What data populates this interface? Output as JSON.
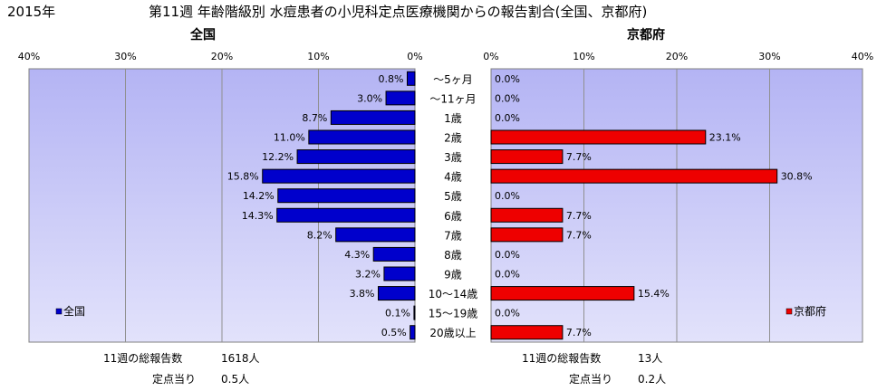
{
  "year": "2015年",
  "title": "第11週 年齢階級別 水痘患者の小児科定点医療機関からの報告割合(全国、京都府)",
  "chart_data": [
    {
      "type": "bar",
      "orientation": "horizontal",
      "title": "全国",
      "legend": "全国",
      "legend_position": "bottom-left",
      "xlim": [
        0,
        40
      ],
      "ticks": [
        "40%",
        "30%",
        "20%",
        "10%",
        "0%"
      ],
      "color": "#0000cc",
      "categories": [
        "～5ヶ月",
        "～11ヶ月",
        "1歳",
        "2歳",
        "3歳",
        "4歳",
        "5歳",
        "6歳",
        "7歳",
        "8歳",
        "9歳",
        "10～14歳",
        "15～19歳",
        "20歳以上"
      ],
      "values": [
        0.8,
        3.0,
        8.7,
        11.0,
        12.2,
        15.8,
        14.2,
        14.3,
        8.2,
        4.3,
        3.2,
        3.8,
        0.1,
        0.5
      ],
      "labels": [
        "0.8%",
        "3.0%",
        "8.7%",
        "11.0%",
        "12.2%",
        "15.8%",
        "14.2%",
        "14.3%",
        "8.2%",
        "4.3%",
        "3.2%",
        "3.8%",
        "0.1%",
        "0.5%"
      ]
    },
    {
      "type": "bar",
      "orientation": "horizontal",
      "title": "京都府",
      "legend": "京都府",
      "legend_position": "bottom-right",
      "xlim": [
        0,
        40
      ],
      "ticks": [
        "0%",
        "10%",
        "20%",
        "30%",
        "40%"
      ],
      "color": "#ee0000",
      "categories": [
        "～5ヶ月",
        "～11ヶ月",
        "1歳",
        "2歳",
        "3歳",
        "4歳",
        "5歳",
        "6歳",
        "7歳",
        "8歳",
        "9歳",
        "10～14歳",
        "15～19歳",
        "20歳以上"
      ],
      "values": [
        0.0,
        0.0,
        0.0,
        23.1,
        7.7,
        30.8,
        0.0,
        7.7,
        7.7,
        0.0,
        0.0,
        15.4,
        0.0,
        7.7
      ],
      "labels": [
        "0.0%",
        "0.0%",
        "0.0%",
        "23.1%",
        "7.7%",
        "30.8%",
        "0.0%",
        "7.7%",
        "7.7%",
        "0.0%",
        "0.0%",
        "15.4%",
        "0.0%",
        "7.7%"
      ]
    }
  ],
  "footer": {
    "national_total_label": "11週の総報告数",
    "national_total_value": "1618人",
    "national_per_label": "定点当り",
    "national_per_value": "0.5人",
    "kyoto_total_label": "11週の総報告数",
    "kyoto_total_value": "13人",
    "kyoto_per_label": "定点当り",
    "kyoto_per_value": "0.2人"
  }
}
